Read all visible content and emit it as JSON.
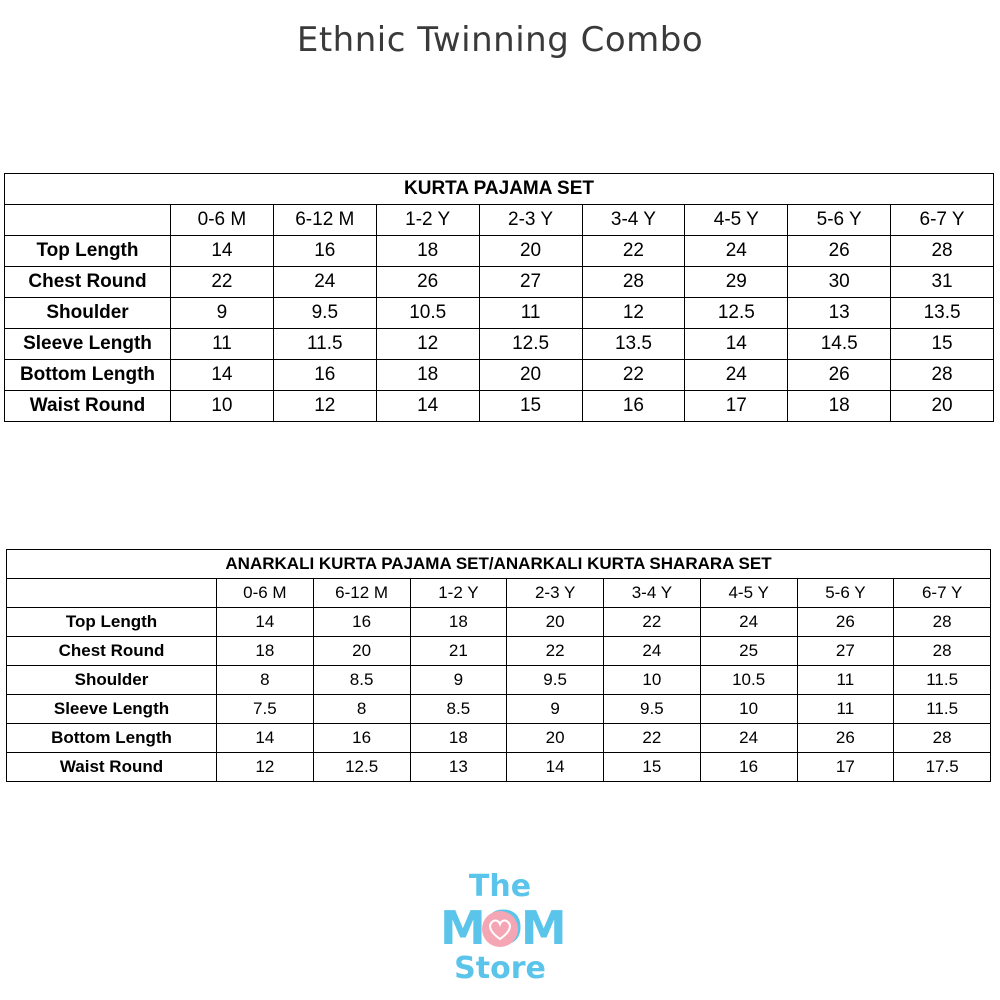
{
  "title": "Ethnic Twinning Combo",
  "sizes": [
    "0-6 M",
    "6-12 M",
    "1-2 Y",
    "2-3 Y",
    "3-4 Y",
    "4-5 Y",
    "5-6 Y",
    "6-7 Y"
  ],
  "tables": [
    {
      "caption": "KURTA PAJAMA SET",
      "rows": [
        {
          "label": "Top Length",
          "values": [
            "14",
            "16",
            "18",
            "20",
            "22",
            "24",
            "26",
            "28"
          ]
        },
        {
          "label": "Chest Round",
          "values": [
            "22",
            "24",
            "26",
            "27",
            "28",
            "29",
            "30",
            "31"
          ]
        },
        {
          "label": "Shoulder",
          "values": [
            "9",
            "9.5",
            "10.5",
            "11",
            "12",
            "12.5",
            "13",
            "13.5"
          ]
        },
        {
          "label": "Sleeve Length",
          "values": [
            "11",
            "11.5",
            "12",
            "12.5",
            "13.5",
            "14",
            "14.5",
            "15"
          ]
        },
        {
          "label": "Bottom Length",
          "values": [
            "14",
            "16",
            "18",
            "20",
            "22",
            "24",
            "26",
            "28"
          ]
        },
        {
          "label": "Waist Round",
          "values": [
            "10",
            "12",
            "14",
            "15",
            "16",
            "17",
            "18",
            "20"
          ]
        }
      ]
    },
    {
      "caption": "ANARKALI KURTA PAJAMA SET/ANARKALI KURTA SHARARA SET",
      "rows": [
        {
          "label": "Top Length",
          "values": [
            "14",
            "16",
            "18",
            "20",
            "22",
            "24",
            "26",
            "28"
          ]
        },
        {
          "label": "Chest Round",
          "values": [
            "18",
            "20",
            "21",
            "22",
            "24",
            "25",
            "27",
            "28"
          ]
        },
        {
          "label": "Shoulder",
          "values": [
            "8",
            "8.5",
            "9",
            "9.5",
            "10",
            "10.5",
            "11",
            "11.5"
          ]
        },
        {
          "label": "Sleeve Length",
          "values": [
            "7.5",
            "8",
            "8.5",
            "9",
            "9.5",
            "10",
            "11",
            "11.5"
          ]
        },
        {
          "label": "Bottom Length",
          "values": [
            "14",
            "16",
            "18",
            "20",
            "22",
            "24",
            "26",
            "28"
          ]
        },
        {
          "label": "Waist Round",
          "values": [
            "12",
            "12.5",
            "13",
            "14",
            "15",
            "16",
            "17",
            "17.5"
          ]
        }
      ]
    }
  ],
  "logo": {
    "line1": "The",
    "line2": "MOM",
    "line3": "Store",
    "text_color": "#5bc4ea",
    "heart_color": "#f4a6b4",
    "icon": "heart-icon"
  }
}
